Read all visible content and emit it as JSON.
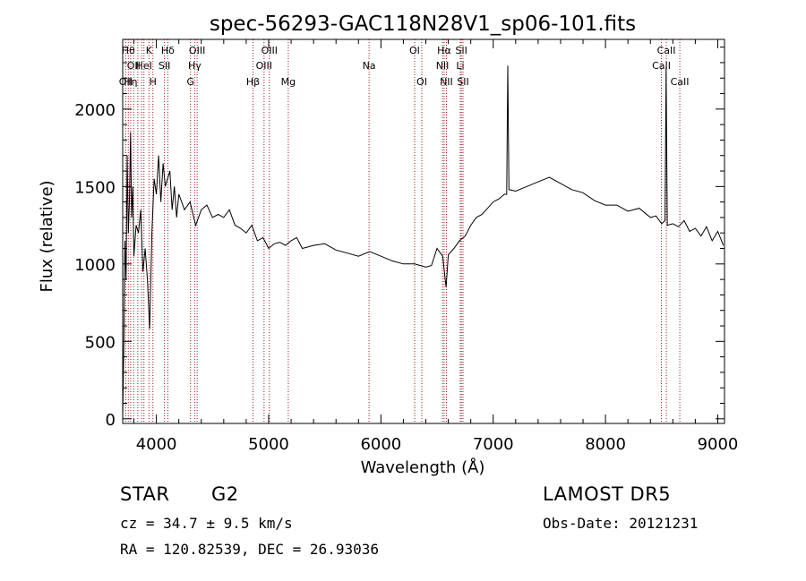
{
  "chart_data": {
    "type": "line",
    "title": "spec-56293-GAC118N28V1_sp06-101.fits",
    "xlabel": "Wavelength (Å)",
    "ylabel": "Flux (relative)",
    "xlim": [
      3700,
      9060
    ],
    "ylim": [
      -30,
      2450
    ],
    "xticks": [
      4000,
      5000,
      6000,
      7000,
      8000,
      9000
    ],
    "yticks": [
      0,
      500,
      1000,
      1500,
      2000
    ],
    "grid": false,
    "line_color": "#000000",
    "marker_color": "#a0141e",
    "series": [
      {
        "x": [
          3700,
          3710,
          3720,
          3730,
          3740,
          3750,
          3760,
          3770,
          3780,
          3790,
          3800,
          3820,
          3840,
          3860,
          3880,
          3900,
          3920,
          3940,
          3960,
          3980,
          4000,
          4020,
          4040,
          4060,
          4080,
          4100,
          4120,
          4140,
          4160,
          4180,
          4200,
          4250,
          4300,
          4350,
          4400,
          4450,
          4500,
          4550,
          4600,
          4650,
          4700,
          4750,
          4800,
          4850,
          4900,
          4950,
          5000,
          5050,
          5100,
          5150,
          5200,
          5250,
          5300,
          5400,
          5500,
          5600,
          5700,
          5800,
          5900,
          6000,
          6100,
          6200,
          6300,
          6400,
          6450,
          6500,
          6550,
          6580,
          6600,
          6650,
          6700,
          6750,
          6800,
          6850,
          6900,
          6950,
          7000,
          7050,
          7100,
          7120,
          7130,
          7140,
          7200,
          7300,
          7400,
          7500,
          7600,
          7700,
          7800,
          7900,
          8000,
          8100,
          8200,
          8300,
          8400,
          8450,
          8500,
          8530,
          8540,
          8550,
          8600,
          8650,
          8700,
          8750,
          8800,
          8850,
          8900,
          8950,
          9000,
          9050
        ],
        "values": [
          0,
          500,
          1150,
          900,
          1700,
          1200,
          1400,
          1850,
          1300,
          1500,
          1050,
          1250,
          1200,
          1350,
          950,
          1100,
          900,
          580,
          1200,
          1550,
          1450,
          1700,
          1400,
          1650,
          1500,
          1550,
          1600,
          1350,
          1500,
          1300,
          1450,
          1350,
          1400,
          1250,
          1350,
          1380,
          1300,
          1320,
          1300,
          1350,
          1250,
          1230,
          1200,
          1250,
          1150,
          1170,
          1100,
          1130,
          1140,
          1120,
          1150,
          1170,
          1100,
          1120,
          1130,
          1090,
          1070,
          1050,
          1080,
          1050,
          1020,
          1000,
          1000,
          980,
          990,
          1100,
          1050,
          850,
          1060,
          1100,
          1150,
          1180,
          1250,
          1300,
          1320,
          1360,
          1400,
          1420,
          1450,
          1450,
          2280,
          1480,
          1470,
          1500,
          1530,
          1560,
          1520,
          1480,
          1460,
          1410,
          1380,
          1380,
          1340,
          1360,
          1300,
          1310,
          1260,
          1280,
          2270,
          1250,
          1260,
          1240,
          1280,
          1210,
          1230,
          1180,
          1240,
          1150,
          1210,
          1120
        ]
      }
    ],
    "lines": [
      {
        "x": 3727,
        "label": "OII",
        "row": 2
      },
      {
        "x": 3750,
        "label": "Hθ",
        "row": 0
      },
      {
        "x": 3771,
        "label": "Hη",
        "row": 2
      },
      {
        "x": 3798,
        "label": "OII",
        "row": 1
      },
      {
        "x": 3835,
        "label": "",
        "row": 0
      },
      {
        "x": 3869,
        "label": "",
        "row": 0
      },
      {
        "x": 3889,
        "label": "HeI",
        "row": 1
      },
      {
        "x": 3934,
        "label": "K",
        "row": 0
      },
      {
        "x": 3969,
        "label": "H",
        "row": 2
      },
      {
        "x": 4072,
        "label": "SII",
        "row": 1
      },
      {
        "x": 4102,
        "label": "Hδ",
        "row": 0
      },
      {
        "x": 4304,
        "label": "G",
        "row": 2
      },
      {
        "x": 4341,
        "label": "Hγ",
        "row": 1
      },
      {
        "x": 4363,
        "label": "OIII",
        "row": 0
      },
      {
        "x": 4861,
        "label": "Hβ",
        "row": 2
      },
      {
        "x": 4959,
        "label": "OIII",
        "row": 1
      },
      {
        "x": 5007,
        "label": "OIII",
        "row": 0
      },
      {
        "x": 5175,
        "label": "Mg",
        "row": 2
      },
      {
        "x": 5894,
        "label": "Na",
        "row": 1
      },
      {
        "x": 6300,
        "label": "OI",
        "row": 0
      },
      {
        "x": 6364,
        "label": "OI",
        "row": 2
      },
      {
        "x": 6548,
        "label": "NII",
        "row": 1
      },
      {
        "x": 6563,
        "label": "Hα",
        "row": 0
      },
      {
        "x": 6583,
        "label": "NII",
        "row": 2
      },
      {
        "x": 6707,
        "label": "Li",
        "row": 1
      },
      {
        "x": 6716,
        "label": "SII",
        "row": 0
      },
      {
        "x": 6731,
        "label": "SII",
        "row": 2
      },
      {
        "x": 8498,
        "label": "CaII",
        "row": 1
      },
      {
        "x": 8542,
        "label": "CaII",
        "row": 0
      },
      {
        "x": 8662,
        "label": "CaII",
        "row": 2
      }
    ]
  },
  "info": {
    "class_label": "STAR",
    "subclass": "G2",
    "survey": "LAMOST DR5",
    "redshift": "cz = 34.7 ± 9.5 km/s",
    "obs_date": "Obs-Date: 20121231",
    "coords": "RA = 120.82539, DEC =  26.93036"
  }
}
